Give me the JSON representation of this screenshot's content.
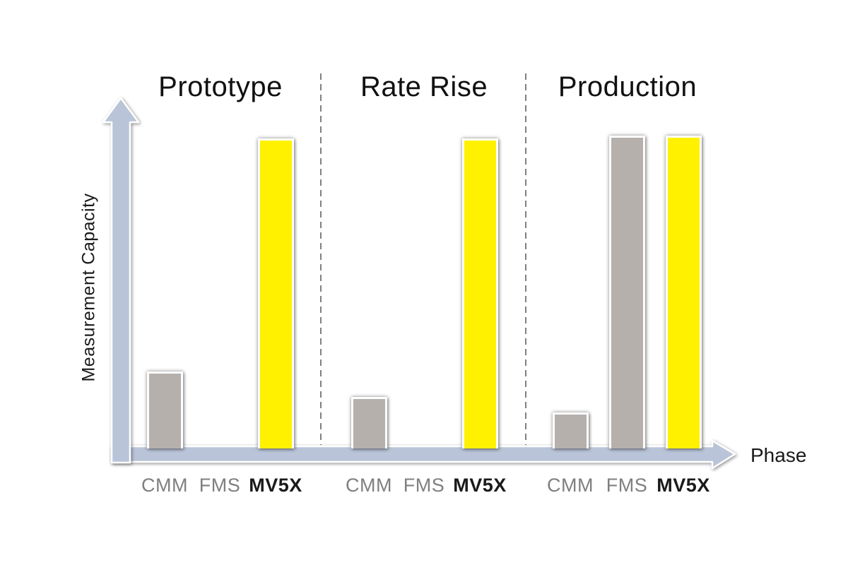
{
  "chart_data": {
    "type": "bar",
    "title": "",
    "ylabel": "Measurement Capacity",
    "xlabel": "Phase",
    "categories": [
      "CMM",
      "FMS",
      "MV5X"
    ],
    "sections": [
      {
        "label": "Prototype",
        "values": [
          24,
          0,
          99
        ]
      },
      {
        "label": "Rate Rise",
        "values": [
          16,
          0,
          99
        ]
      },
      {
        "label": "Production",
        "values": [
          11,
          100,
          100
        ]
      }
    ],
    "ylim": [
      0,
      100
    ],
    "value_scale": "percent-of-max-height",
    "grid": "off",
    "legend": "none",
    "bar_colors": [
      "#b5b0ac",
      "#b5b0ac",
      "#fff100"
    ],
    "label_colors": [
      "#7f7f7f",
      "#7f7f7f",
      "#1a1a1a"
    ],
    "axis_color": "#b9c4d8",
    "separator_color": "#808080"
  }
}
